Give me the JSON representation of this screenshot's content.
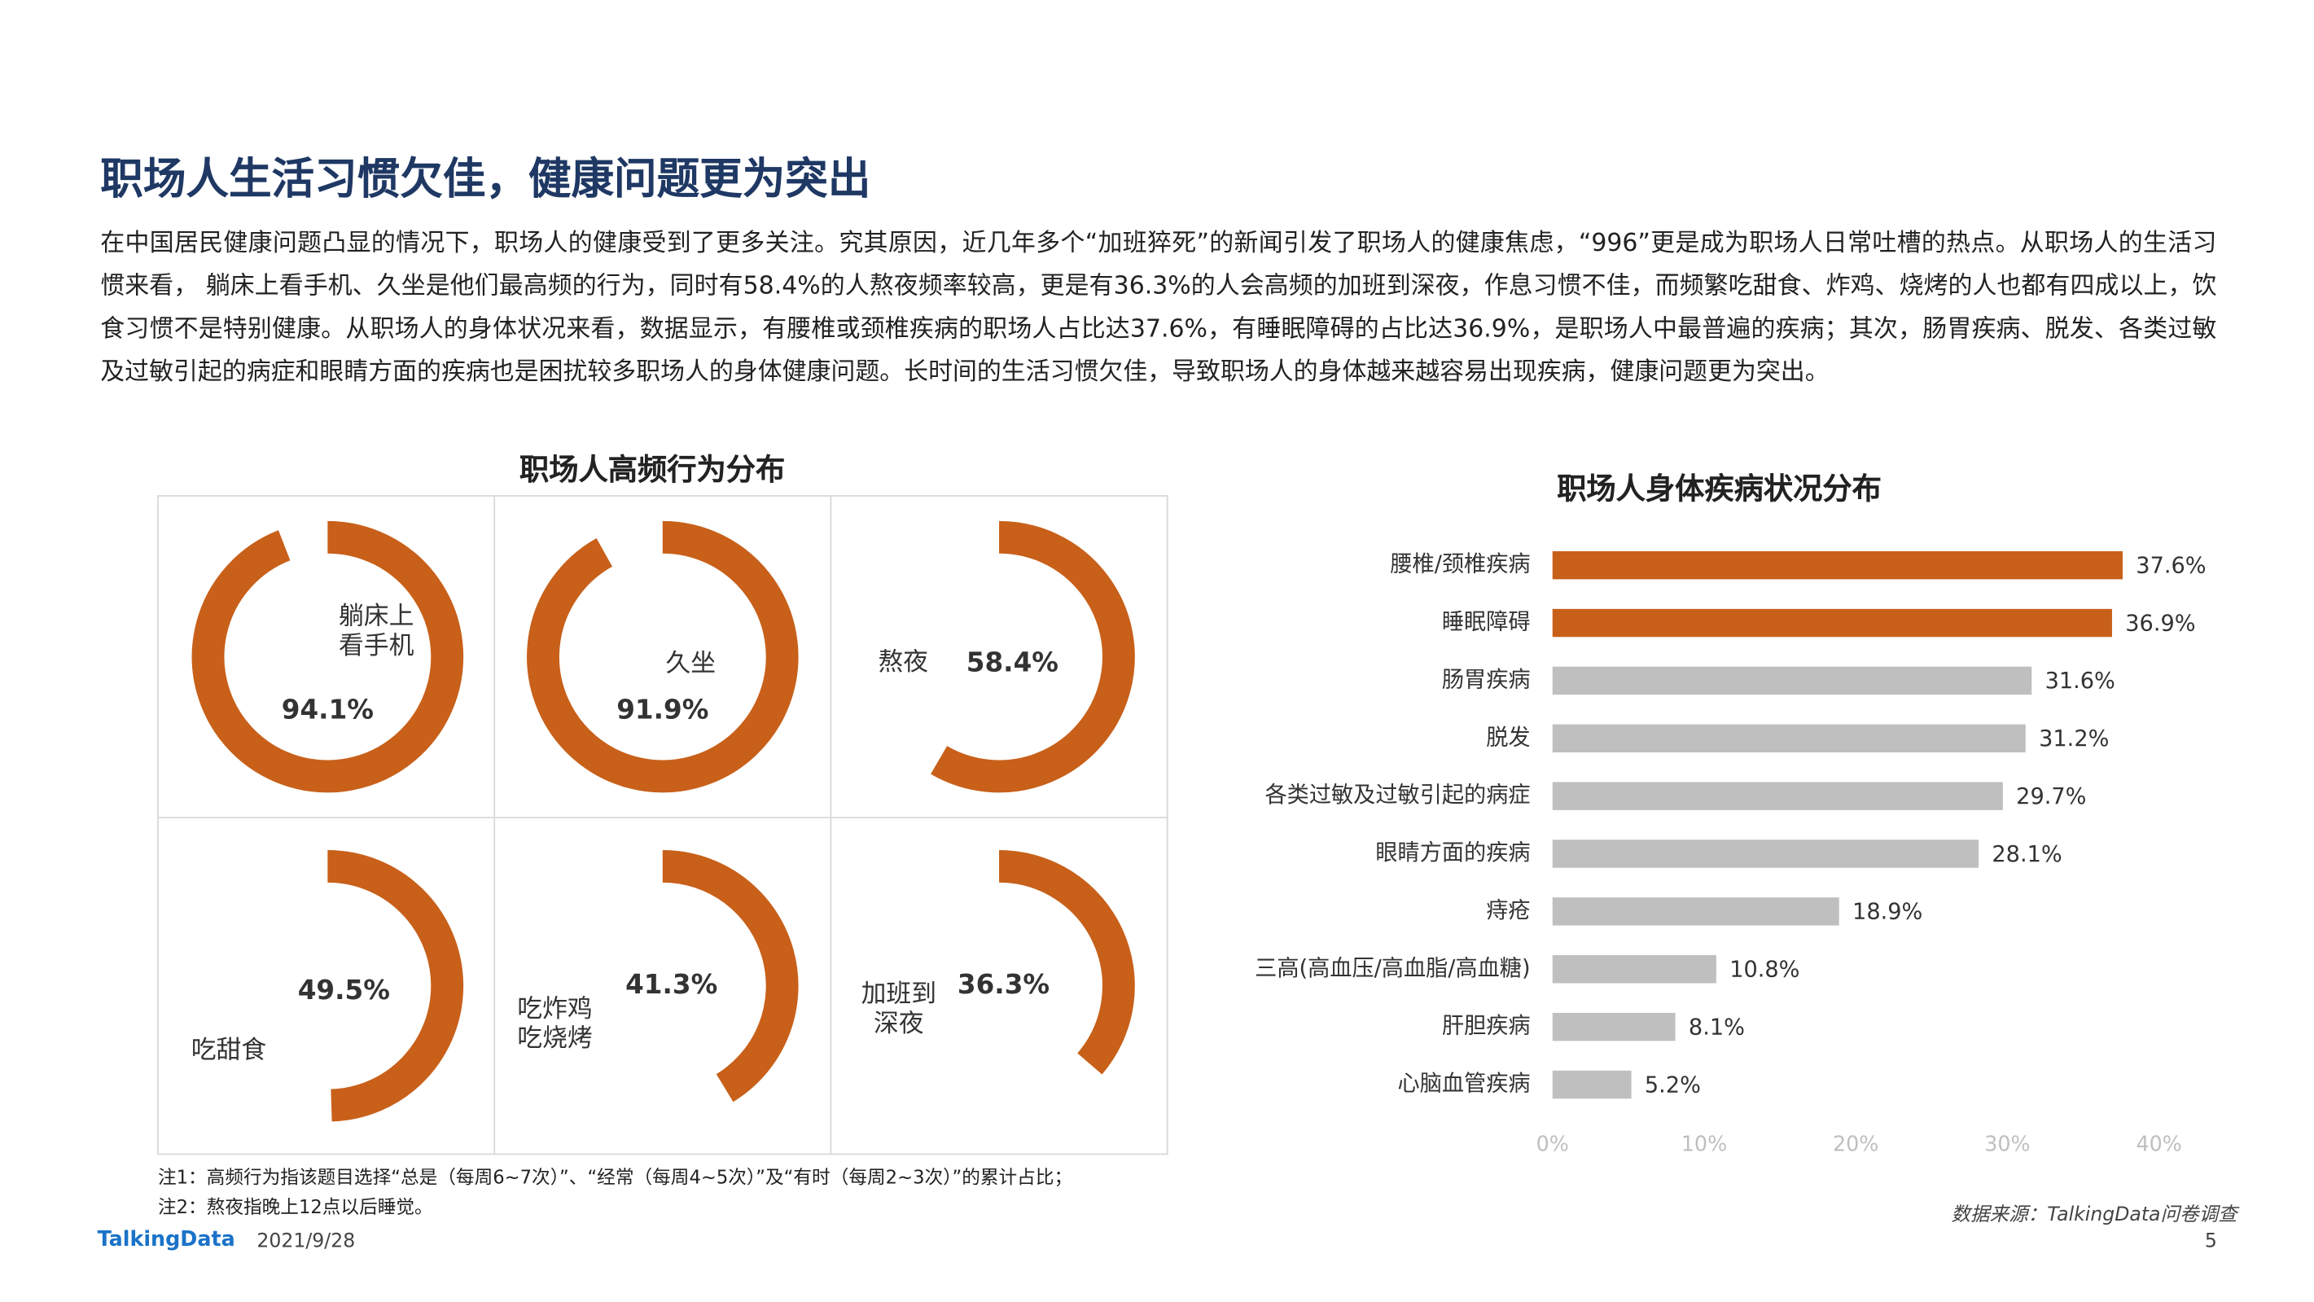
{
  "header": {
    "title": "职场人生活习惯欠佳，健康问题更为突出"
  },
  "paragraph": "在中国居民健康问题凸显的情况下，职场人的健康受到了更多关注。究其原因，近几年多个“加班猝死”的新闻引发了职场人的健康焦虑，“996”更是成为职场人日常吐槽的热点。从职场人的生活习惯来看， 躺床上看手机、久坐是他们最高频的行为，同时有58.4%的人熬夜频率较高，更是有36.3%的人会高频的加班到深夜，作息习惯不佳，而频繁吃甜食、炸鸡、烧烤的人也都有四成以上，饮食习惯不是特别健康。从职场人的身体状况来看，数据显示，有腰椎或颈椎疾病的职场人占比达37.6%，有睡眠障碍的占比达36.9%，是职场人中最普遍的疾病；其次，肠胃疾病、脱发、各类过敏及过敏引起的病症和眼睛方面的疾病也是困扰较多职场人的身体健康问题。长时间的生活习惯欠佳，导致职场人的身体越来越容易出现疾病，健康问题更为突出。",
  "chart_data": [
    {
      "type": "donut",
      "title": "职场人高频行为分布",
      "categories": [
        "躺床上\n看手机",
        "久坐",
        "熬夜",
        "吃甜食",
        "吃炸鸡\n吃烧烤",
        "加班到\n深夜"
      ],
      "values": [
        94.1,
        91.9,
        58.4,
        49.5,
        41.3,
        36.3
      ],
      "value_labels": [
        "94.1%",
        "91.9%",
        "58.4%",
        "49.5%",
        "41.3%",
        "36.3%"
      ],
      "color": "#c8601a"
    },
    {
      "type": "hbar",
      "title": "职场人身体疾病状况分布",
      "categories": [
        "腰椎/颈椎疾病",
        "睡眠障碍",
        "肠胃疾病",
        "脱发",
        "各类过敏及过敏引起的病症",
        "眼睛方面的疾病",
        "痔疮",
        "三高(高血压/高血脂/高血糖)",
        "肝胆疾病",
        "心脑血管疾病"
      ],
      "values": [
        37.6,
        36.9,
        31.6,
        31.2,
        29.7,
        28.1,
        18.9,
        10.8,
        8.1,
        5.2
      ],
      "value_labels": [
        "37.6%",
        "36.9%",
        "31.6%",
        "31.2%",
        "29.7%",
        "28.1%",
        "18.9%",
        "10.8%",
        "8.1%",
        "5.2%"
      ],
      "colors": [
        "#c8601a",
        "#c8601a",
        "#bfbfbf",
        "#bfbfbf",
        "#bfbfbf",
        "#bfbfbf",
        "#bfbfbf",
        "#bfbfbf",
        "#bfbfbf",
        "#bfbfbf"
      ],
      "xlim": [
        0,
        40
      ],
      "xticks": [
        {
          "value": 0,
          "label": "0%"
        },
        {
          "value": 10,
          "label": "10%"
        },
        {
          "value": 20,
          "label": "20%"
        },
        {
          "value": 30,
          "label": "30%"
        },
        {
          "value": 40,
          "label": "40%"
        }
      ]
    }
  ],
  "notes": [
    "注1：高频行为指该题目选择“总是（每周6~7次）”、“经常（每周4~5次）”及“有时（每周2~3次）”的累计占比；",
    "注2：熬夜指晚上12点以后睡觉。"
  ],
  "source": "数据来源：TalkingData问卷调查",
  "footer": {
    "brand": "TalkingData",
    "date": "2021/9/28",
    "page": "5"
  }
}
